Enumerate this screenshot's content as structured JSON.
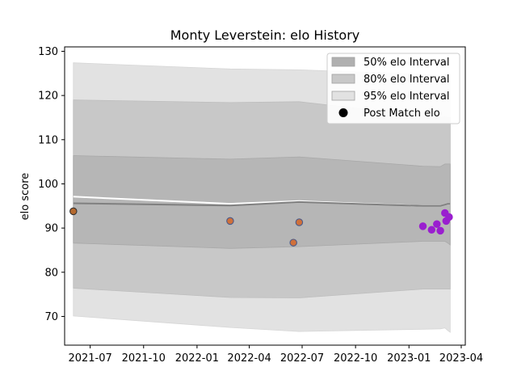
{
  "chart_data": {
    "type": "area",
    "title": "Monty Leverstein: elo History",
    "xlabel": "",
    "ylabel": "elo score",
    "xlim": [
      "2021-05-18",
      "2023-04-08"
    ],
    "ylim": [
      63.5,
      131.0
    ],
    "x_ticks": [
      "2021-07",
      "2021-10",
      "2022-01",
      "2022-04",
      "2022-07",
      "2022-10",
      "2023-01",
      "2023-04"
    ],
    "y_ticks": [
      70,
      80,
      90,
      100,
      110,
      120,
      130
    ],
    "legend_placement": "top-right",
    "grid": false,
    "legend": [
      {
        "label": "50% elo Interval",
        "kind": "band",
        "color": "#b0b0b0"
      },
      {
        "label": "80% elo Interval",
        "kind": "band",
        "color": "#c8c8c8"
      },
      {
        "label": "95% elo Interval",
        "kind": "band",
        "color": "#e2e2e2"
      },
      {
        "label": "Post Match elo",
        "kind": "marker",
        "color": "#000000"
      }
    ],
    "bands": {
      "x": [
        "2021-06-02",
        "2022-02-27",
        "2022-06-26",
        "2023-01-25",
        "2023-02-24",
        "2023-03-04",
        "2023-03-09",
        "2023-03-13"
      ],
      "ci95_low": [
        70.1,
        67.5,
        66.6,
        67.1,
        67.2,
        67.4,
        66.8,
        66.4
      ],
      "ci95_high": [
        127.4,
        126.0,
        125.8,
        124.8,
        124.6,
        124.8,
        124.8,
        124.8
      ],
      "ci80_low": [
        76.4,
        74.3,
        74.2,
        76.2,
        76.2,
        76.2,
        76.2,
        76.2
      ],
      "ci80_high": [
        119.0,
        118.4,
        118.6,
        115.4,
        115.0,
        115.2,
        115.0,
        115.0
      ],
      "ci50_low": [
        86.6,
        85.4,
        85.8,
        87.0,
        87.0,
        87.0,
        86.6,
        86.2
      ],
      "ci50_high": [
        106.4,
        105.6,
        106.1,
        104.0,
        103.9,
        104.5,
        104.5,
        104.5
      ]
    },
    "mean_line": {
      "color": "#808080",
      "x": [
        "2021-06-02",
        "2022-02-27",
        "2022-06-26",
        "2023-01-25",
        "2023-02-24",
        "2023-03-04",
        "2023-03-09",
        "2023-03-13"
      ],
      "y": [
        95.6,
        95.1,
        95.9,
        95.0,
        95.0,
        95.3,
        95.5,
        95.5
      ]
    },
    "highlight_line": {
      "color": "#ffffff",
      "x": [
        "2021-06-02",
        "2022-02-27",
        "2022-06-26",
        "2023-01-25",
        "2023-02-24",
        "2023-03-04",
        "2023-03-09",
        "2023-03-13"
      ],
      "y": [
        97.1,
        95.5,
        96.1,
        95.0,
        95.0,
        95.3,
        95.5,
        95.5
      ]
    },
    "points": [
      {
        "x": "2021-06-02",
        "y": 93.8,
        "fill": "#b5692e",
        "edge": "#333333"
      },
      {
        "x": "2022-02-27",
        "y": 91.6,
        "fill": "#d0703a",
        "edge": "#4a5a8a"
      },
      {
        "x": "2022-06-16",
        "y": 86.7,
        "fill": "#d0703a",
        "edge": "#4a5a8a"
      },
      {
        "x": "2022-06-26",
        "y": 91.3,
        "fill": "#d0703a",
        "edge": "#4a5a8a"
      },
      {
        "x": "2023-01-25",
        "y": 90.4,
        "fill": "#9a1fcf",
        "edge": "#9a1fcf"
      },
      {
        "x": "2023-02-09",
        "y": 89.6,
        "fill": "#9a1fcf",
        "edge": "#9a1fcf"
      },
      {
        "x": "2023-02-18",
        "y": 90.9,
        "fill": "#9a1fcf",
        "edge": "#9a1fcf"
      },
      {
        "x": "2023-02-24",
        "y": 89.4,
        "fill": "#9a1fcf",
        "edge": "#9a1fcf"
      },
      {
        "x": "2023-03-04",
        "y": 93.4,
        "fill": "#9a1fcf",
        "edge": "#9a1fcf"
      },
      {
        "x": "2023-03-06",
        "y": 91.6,
        "fill": "#9a1fcf",
        "edge": "#9a1fcf"
      },
      {
        "x": "2023-03-11",
        "y": 92.5,
        "fill": "#9a1fcf",
        "edge": "#9a1fcf"
      }
    ]
  }
}
